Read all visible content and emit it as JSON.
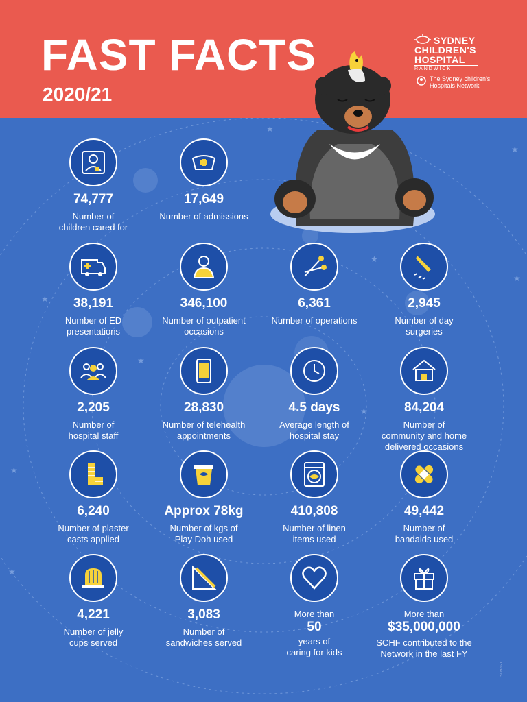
{
  "header": {
    "title": "FAST FACTS",
    "year": "2020/21",
    "logo_line1": "SYDNEY",
    "logo_line2": "CHILDREN'S",
    "logo_line3": "HOSPITAL",
    "logo_sub": "RANDWICK",
    "network_line1": "The Sydney children's",
    "network_line2": "Hospitals Network"
  },
  "colors": {
    "header_bg": "#ea5a4f",
    "page_bg": "#3d6fc4",
    "icon_circle": "#1e4fa8",
    "icon_accent": "#f7d23a"
  },
  "stats": [
    {
      "icon": "child-person-icon",
      "value": "74,777",
      "label_l1": "Number of",
      "label_l2": "children cared for"
    },
    {
      "icon": "nurse-cap-icon",
      "value": "17,649",
      "label_l1": "Number of admissions",
      "label_l2": ""
    },
    {
      "icon": "ambulance-icon",
      "value": "38,191",
      "label_l1": "Number of ED",
      "label_l2": "presentations"
    },
    {
      "icon": "outpatient-person-icon",
      "value": "346,100",
      "label_l1": "Number of outpatient",
      "label_l2": "occasions"
    },
    {
      "icon": "surgical-scissors-icon",
      "value": "6,361",
      "label_l1": "Number of operations",
      "label_l2": ""
    },
    {
      "icon": "scalpel-icon",
      "value": "2,945",
      "label_l1": "Number of day",
      "label_l2": "surgeries"
    },
    {
      "icon": "staff-group-icon",
      "value": "2,205",
      "label_l1": "Number of",
      "label_l2": "hospital staff"
    },
    {
      "icon": "tablet-icon",
      "value": "28,830",
      "label_l1": "Number of telehealth",
      "label_l2": "appointments"
    },
    {
      "icon": "clock-icon",
      "value": "4.5 days",
      "label_l1": "Average length of",
      "label_l2": "hospital stay"
    },
    {
      "icon": "house-icon",
      "value": "84,204",
      "label_l1": "Number of",
      "label_l2": "community and home",
      "label_l3": "delivered occasions"
    },
    {
      "icon": "plaster-cast-icon",
      "value": "6,240",
      "label_l1": "Number of plaster",
      "label_l2": "casts applied"
    },
    {
      "icon": "play-doh-tub-icon",
      "value": "Approx 78kg",
      "label_l1": "Number of kgs of",
      "label_l2": "Play Doh used"
    },
    {
      "icon": "washing-machine-icon",
      "value": "410,808",
      "label_l1": "Number of linen",
      "label_l2": "items used"
    },
    {
      "icon": "bandaid-icon",
      "value": "49,442",
      "label_l1": "Number of",
      "label_l2": "bandaids used"
    },
    {
      "icon": "jelly-cup-icon",
      "value": "4,221",
      "label_l1": "Number of jelly",
      "label_l2": "cups served"
    },
    {
      "icon": "sandwich-icon",
      "value": "3,083",
      "label_l1": "Number of",
      "label_l2": "sandwiches served"
    }
  ],
  "years_caring": {
    "icon": "heart-icon",
    "prefix": "More than",
    "value": "50",
    "label_l1": "years of",
    "label_l2": "caring for kids"
  },
  "schf": {
    "icon": "gift-icon",
    "prefix": "More than",
    "value": "$35,000,000",
    "label_l1": "SCHF contributed to the",
    "label_l2": "Network in the last FY"
  },
  "footer_code": "SCH2021"
}
